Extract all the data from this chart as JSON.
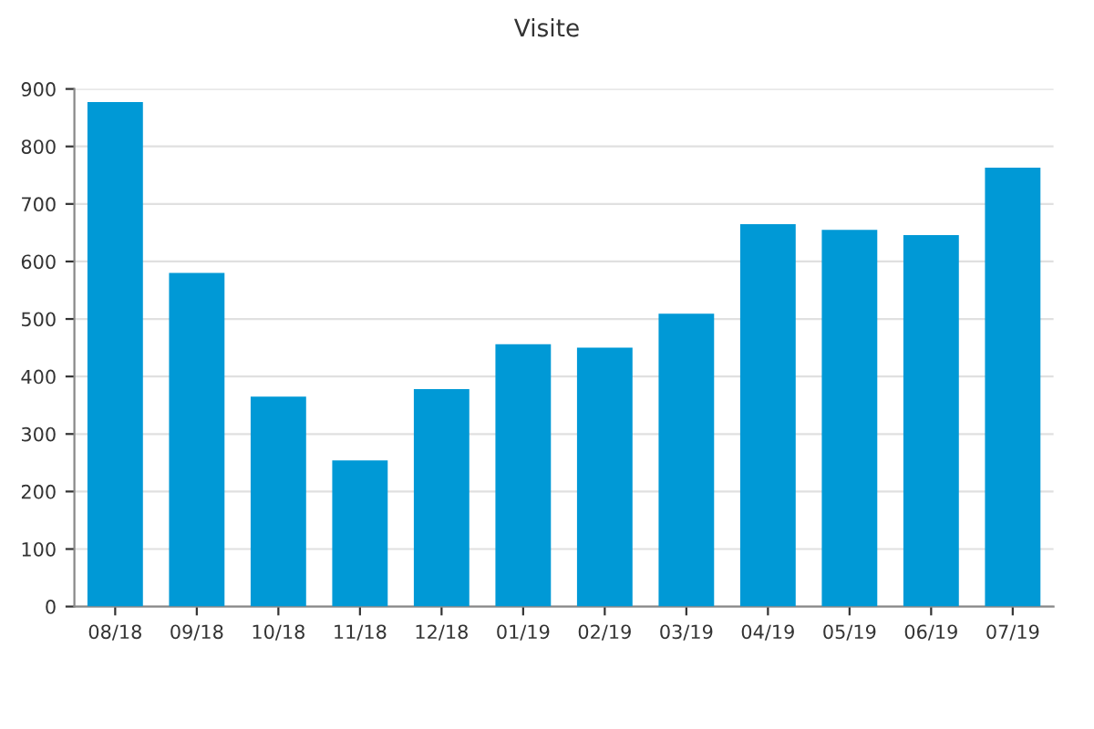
{
  "chart_data": {
    "type": "bar",
    "title": "Visite",
    "categories": [
      "08/18",
      "09/18",
      "10/18",
      "11/18",
      "12/18",
      "01/19",
      "02/19",
      "03/19",
      "04/19",
      "05/19",
      "06/19",
      "07/19"
    ],
    "values": [
      877,
      580,
      365,
      254,
      378,
      456,
      450,
      509,
      665,
      655,
      646,
      763
    ],
    "color": "#0099d6",
    "ylim": [
      0,
      900
    ],
    "yticks": [
      0,
      100,
      200,
      300,
      400,
      500,
      600,
      700,
      800,
      900
    ],
    "grid": "y"
  }
}
